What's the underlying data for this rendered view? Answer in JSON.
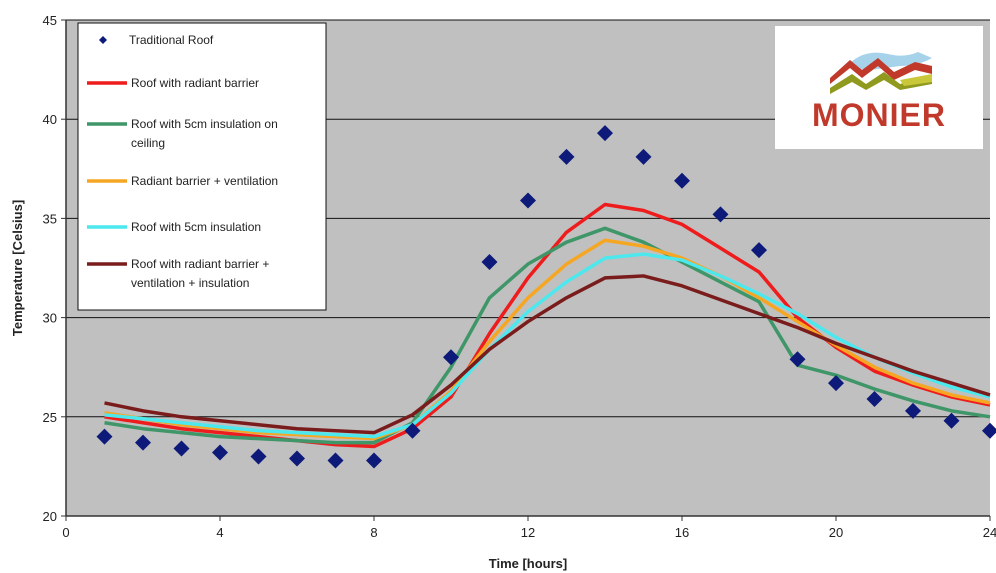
{
  "chart_data": {
    "type": "line",
    "xlabel": "Time [hours]",
    "ylabel": "Temperature [Celsius]",
    "xlim": [
      0,
      24
    ],
    "ylim": [
      20,
      45
    ],
    "xticks": [
      0,
      4,
      8,
      12,
      16,
      20,
      24
    ],
    "yticks": [
      20,
      25,
      30,
      35,
      40,
      45
    ],
    "grid": "horizontal",
    "legend_position": "top-left",
    "plot_background": "#c0c0c0",
    "x": [
      1,
      2,
      3,
      4,
      5,
      6,
      7,
      8,
      9,
      10,
      11,
      12,
      13,
      14,
      15,
      16,
      17,
      18,
      19,
      20,
      21,
      22,
      23,
      24
    ],
    "series": [
      {
        "name": "Traditional Roof",
        "style": "marker",
        "marker": "diamond",
        "color": "#0d1a7a",
        "values": [
          24.0,
          23.7,
          23.4,
          23.2,
          23.0,
          22.9,
          22.8,
          22.8,
          24.3,
          28.0,
          32.8,
          35.9,
          38.1,
          39.3,
          38.1,
          36.9,
          35.2,
          33.4,
          27.9,
          26.7,
          25.9,
          25.3,
          24.8,
          24.3
        ]
      },
      {
        "name": "Roof with radiant barrier",
        "style": "line",
        "color": "#ee1c1c",
        "values": [
          25.0,
          24.7,
          24.4,
          24.2,
          24.0,
          23.8,
          23.6,
          23.5,
          24.4,
          26.0,
          29.2,
          32.0,
          34.3,
          35.7,
          35.4,
          34.7,
          33.5,
          32.3,
          30.0,
          28.5,
          27.3,
          26.6,
          26.0,
          25.6
        ]
      },
      {
        "name": "Roof with 5cm insulation on ceiling",
        "style": "line",
        "color": "#3f9668",
        "values": [
          24.7,
          24.4,
          24.2,
          24.0,
          23.9,
          23.8,
          23.7,
          23.7,
          24.7,
          27.5,
          31.0,
          32.7,
          33.8,
          34.5,
          33.8,
          32.8,
          31.8,
          30.8,
          27.6,
          27.1,
          26.4,
          25.8,
          25.3,
          25.0
        ]
      },
      {
        "name": "Radiant barrier + ventilation",
        "style": "line",
        "color": "#f5a623",
        "values": [
          25.2,
          24.9,
          24.6,
          24.4,
          24.2,
          24.1,
          24.0,
          23.9,
          24.6,
          26.3,
          28.8,
          31.0,
          32.7,
          33.9,
          33.6,
          33.0,
          32.1,
          31.0,
          29.8,
          28.6,
          27.5,
          26.7,
          26.1,
          25.7
        ]
      },
      {
        "name": "Roof with 5cm insulation",
        "style": "line",
        "color": "#4de8ee",
        "values": [
          25.1,
          24.9,
          24.7,
          24.5,
          24.3,
          24.2,
          24.1,
          24.0,
          24.6,
          26.2,
          28.4,
          30.3,
          31.8,
          33.0,
          33.2,
          32.9,
          32.1,
          31.2,
          30.2,
          29.0,
          28.0,
          27.2,
          26.5,
          26.0
        ]
      },
      {
        "name": "Roof with radiant barrier + ventilation + insulation",
        "style": "line",
        "color": "#7a1c1c",
        "values": [
          25.7,
          25.3,
          25.0,
          24.8,
          24.6,
          24.4,
          24.3,
          24.2,
          25.1,
          26.6,
          28.4,
          29.8,
          31.0,
          32.0,
          32.1,
          31.6,
          30.9,
          30.2,
          29.5,
          28.7,
          28.0,
          27.3,
          26.7,
          26.1
        ]
      }
    ],
    "legend": [
      {
        "lines": [
          "Traditional Roof"
        ]
      },
      {
        "lines": [
          "Roof with radiant barrier"
        ]
      },
      {
        "lines": [
          "Roof with 5cm insulation on",
          "ceiling"
        ]
      },
      {
        "lines": [
          "Radiant barrier + ventilation"
        ]
      },
      {
        "lines": [
          "Roof with 5cm  insulation"
        ]
      },
      {
        "lines": [
          "Roof with radiant barrier +",
          "ventilation + insulation"
        ]
      }
    ]
  },
  "logo": {
    "text": "MONIER",
    "text_color": "#c0392b"
  }
}
